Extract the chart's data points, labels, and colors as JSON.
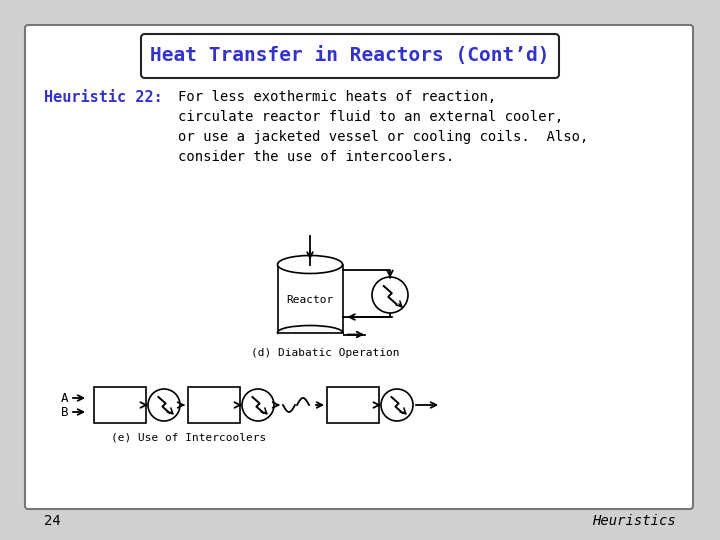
{
  "title": "Heat Transfer in Reactors (Cont’d)",
  "title_color": "#3333cc",
  "slide_bg": "#d0d0d0",
  "slide_inner_bg": "#ffffff",
  "heuristic_label": "Heuristic 22:",
  "heuristic_color": "#3333cc",
  "heuristic_lines": [
    "For less exothermic heats of reaction,",
    "circulate reactor fluid to an external cooler,",
    "or use a jacketed vessel or cooling coils.  Also,",
    "consider the use of intercoolers."
  ],
  "body_text_color": "#000000",
  "diagram_d_label": "(d) Diabatic Operation",
  "diagram_e_label": "(e) Use of Intercoolers",
  "reactor_label": "Reactor",
  "page_number": "24",
  "footer_right": "Heuristics"
}
